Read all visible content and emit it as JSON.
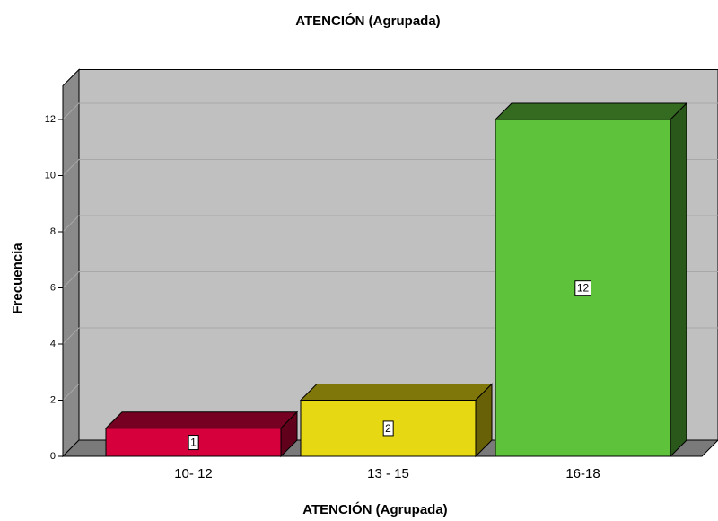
{
  "chart_data": {
    "type": "bar3d",
    "title": "ATENCIÓN (Agrupada)",
    "x_label": "ATENCIÓN (Agrupada)",
    "y_label": "Frecuencia",
    "categories": [
      "10- 12",
      "13 - 15",
      "16-18"
    ],
    "values": [
      1,
      2,
      12
    ],
    "colors": [
      "#d6003c",
      "#e6d812",
      "#5ec33b"
    ],
    "ylim": [
      0,
      13.2
    ],
    "yticks": [
      0,
      2,
      4,
      6,
      8,
      10,
      12
    ],
    "grid": true
  }
}
